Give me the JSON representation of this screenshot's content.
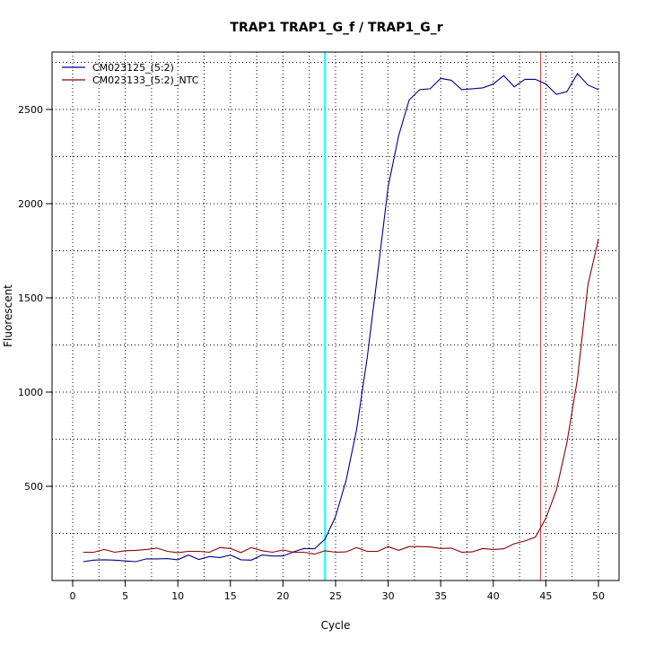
{
  "chart_data": {
    "type": "line",
    "title": "TRAP1  TRAP1_G_f / TRAP1_G_r",
    "xlabel": "Cycle",
    "ylabel": "Fluorescent",
    "xlim": [
      0,
      52
    ],
    "ylim": [
      60,
      2830
    ],
    "x_ticks": [
      0,
      5,
      10,
      15,
      20,
      25,
      30,
      35,
      40,
      45,
      50
    ],
    "y_ticks": [
      500,
      1000,
      1500,
      2000,
      2500
    ],
    "grid": "dotted, vertical at each 5-cycle multiple and at 24 and 44.5; horizontal at every 250",
    "legend_position": "top-left",
    "x": [
      1,
      2,
      3,
      4,
      5,
      6,
      7,
      8,
      9,
      10,
      11,
      12,
      13,
      14,
      15,
      16,
      17,
      18,
      19,
      20,
      21,
      22,
      23,
      24,
      25,
      26,
      27,
      28,
      29,
      30,
      31,
      32,
      33,
      34,
      35,
      36,
      37,
      38,
      39,
      40,
      41,
      42,
      43,
      44,
      45,
      46,
      47,
      48,
      49,
      50
    ],
    "series": [
      {
        "name": "CM023125_(5:2)",
        "color": "#00008B",
        "values": [
          100,
          108,
          110,
          108,
          104,
          100,
          115,
          115,
          116,
          110,
          135,
          112,
          127,
          122,
          135,
          110,
          108,
          135,
          130,
          130,
          152,
          170,
          168,
          220,
          340,
          530,
          800,
          1180,
          1630,
          2090,
          2360,
          2550,
          2605,
          2610,
          2665,
          2655,
          2605,
          2610,
          2615,
          2635,
          2680,
          2620,
          2660,
          2660,
          2635,
          2580,
          2595,
          2690,
          2630,
          2605
        ]
      },
      {
        "name": "CM023133_(5:2)_NTC",
        "color": "#8B0000",
        "values": [
          150,
          150,
          165,
          150,
          158,
          160,
          165,
          172,
          155,
          148,
          155,
          155,
          150,
          175,
          170,
          148,
          175,
          158,
          150,
          162,
          150,
          150,
          140,
          158,
          150,
          152,
          175,
          155,
          155,
          180,
          160,
          180,
          180,
          178,
          170,
          172,
          150,
          152,
          170,
          165,
          168,
          195,
          210,
          230,
          330,
          480,
          730,
          1070,
          1570,
          1810
        ]
      }
    ],
    "threshold_lines": [
      {
        "x": 24,
        "color": "#00FFFF"
      },
      {
        "x": 44.5,
        "color": "#D04040"
      }
    ]
  }
}
